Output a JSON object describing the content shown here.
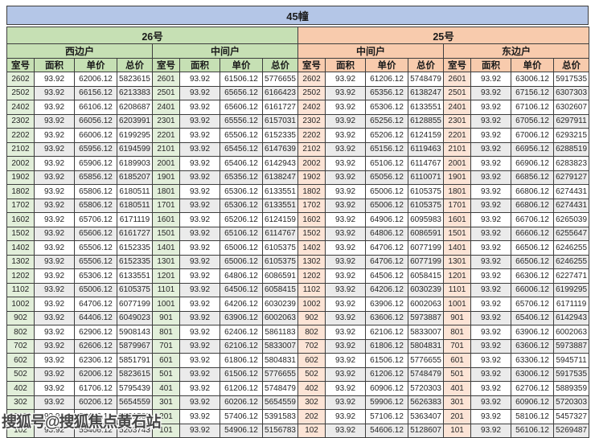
{
  "title": "45幢",
  "watermark": {
    "text": "搜狐号@搜狐焦点黄石站"
  },
  "colors": {
    "title_bar": "#b4c6e7",
    "section_green": "#c6e0b4",
    "section_peach": "#f8cbad",
    "room_col_green": "#e2efda",
    "room_col_peach": "#fce4d6",
    "stripe_gray": "#ebebeb"
  },
  "table": {
    "sections": [
      {
        "label": "26号",
        "units": [
          "西边户",
          "中间户"
        ]
      },
      {
        "label": "25号",
        "units": [
          "中间户",
          "东边户"
        ]
      }
    ],
    "column_headers": [
      "室号",
      "面积",
      "单价",
      "总价"
    ],
    "rows": [
      [
        "2602",
        "93.92",
        "62006.12",
        "5823615",
        "2601",
        "93.92",
        "61506.12",
        "5776655",
        "2602",
        "93.92",
        "61206.12",
        "5748479",
        "2601",
        "93.92",
        "63006.12",
        "5917535"
      ],
      [
        "2502",
        "93.92",
        "66156.12",
        "6213383",
        "2501",
        "93.92",
        "65656.12",
        "6166423",
        "2502",
        "93.92",
        "65356.12",
        "6138247",
        "2501",
        "93.92",
        "67156.12",
        "6307303"
      ],
      [
        "2402",
        "93.92",
        "66106.12",
        "6208687",
        "2401",
        "93.92",
        "65606.12",
        "6161727",
        "2402",
        "93.92",
        "65306.12",
        "6133551",
        "2401",
        "93.92",
        "67106.12",
        "6302607"
      ],
      [
        "2302",
        "93.92",
        "66056.12",
        "6203991",
        "2301",
        "93.92",
        "65556.12",
        "6157031",
        "2302",
        "93.92",
        "65256.12",
        "6128855",
        "2301",
        "93.92",
        "67056.12",
        "6297911"
      ],
      [
        "2202",
        "93.92",
        "66006.12",
        "6199295",
        "2201",
        "93.92",
        "65506.12",
        "6152335",
        "2202",
        "93.92",
        "65206.12",
        "6124159",
        "2201",
        "93.92",
        "67006.12",
        "6293215"
      ],
      [
        "2102",
        "93.92",
        "65956.12",
        "6194599",
        "2101",
        "93.92",
        "65456.12",
        "6147639",
        "2102",
        "93.92",
        "65156.12",
        "6119463",
        "2101",
        "93.92",
        "66956.12",
        "6288519"
      ],
      [
        "2002",
        "93.92",
        "65906.12",
        "6189903",
        "2001",
        "93.92",
        "65406.12",
        "6142943",
        "2002",
        "93.92",
        "65106.12",
        "6114767",
        "2001",
        "93.92",
        "66906.12",
        "6283823"
      ],
      [
        "1902",
        "93.92",
        "65856.12",
        "6185207",
        "1901",
        "93.92",
        "65356.12",
        "6138247",
        "1902",
        "93.92",
        "65056.12",
        "6110071",
        "1901",
        "93.92",
        "66856.12",
        "6279127"
      ],
      [
        "1802",
        "93.92",
        "65806.12",
        "6180511",
        "1801",
        "93.92",
        "65306.12",
        "6133551",
        "1802",
        "93.92",
        "65006.12",
        "6105375",
        "1801",
        "93.92",
        "66806.12",
        "6274431"
      ],
      [
        "1702",
        "93.92",
        "65806.12",
        "6180511",
        "1701",
        "93.92",
        "65306.12",
        "6133551",
        "1702",
        "93.92",
        "65006.12",
        "6105375",
        "1701",
        "93.92",
        "66806.12",
        "6274431"
      ],
      [
        "1602",
        "93.92",
        "65706.12",
        "6171119",
        "1601",
        "93.92",
        "65206.12",
        "6124159",
        "1602",
        "93.92",
        "64906.12",
        "6095983",
        "1601",
        "93.92",
        "66706.12",
        "6265039"
      ],
      [
        "1502",
        "93.92",
        "65606.12",
        "6161727",
        "1501",
        "93.92",
        "65106.12",
        "6114767",
        "1502",
        "93.92",
        "64806.12",
        "6086591",
        "1501",
        "93.92",
        "66606.12",
        "6255647"
      ],
      [
        "1402",
        "93.92",
        "65506.12",
        "6152335",
        "1401",
        "93.92",
        "65006.12",
        "6105375",
        "1402",
        "93.92",
        "64706.12",
        "6077199",
        "1401",
        "93.92",
        "66506.12",
        "6246255"
      ],
      [
        "1302",
        "93.92",
        "65506.12",
        "6152335",
        "1301",
        "93.92",
        "65006.12",
        "6105375",
        "1302",
        "93.92",
        "64706.12",
        "6077199",
        "1301",
        "93.92",
        "66506.12",
        "6246255"
      ],
      [
        "1202",
        "93.92",
        "65306.12",
        "6133551",
        "1201",
        "93.92",
        "64806.12",
        "6086591",
        "1202",
        "93.92",
        "64506.12",
        "6058415",
        "1201",
        "93.92",
        "66306.12",
        "6227471"
      ],
      [
        "1102",
        "93.92",
        "65006.12",
        "6105375",
        "1101",
        "93.92",
        "64506.12",
        "6058415",
        "1102",
        "93.92",
        "64206.12",
        "6030239",
        "1101",
        "93.92",
        "66006.12",
        "6199295"
      ],
      [
        "1002",
        "93.92",
        "64706.12",
        "6077199",
        "1001",
        "93.92",
        "64206.12",
        "6030239",
        "1002",
        "93.92",
        "63906.12",
        "6002063",
        "1001",
        "93.92",
        "65706.12",
        "6171119"
      ],
      [
        "902",
        "93.92",
        "64406.12",
        "6049023",
        "901",
        "93.92",
        "63906.12",
        "6002063",
        "902",
        "93.92",
        "63606.12",
        "5973887",
        "901",
        "93.92",
        "65406.12",
        "6142943"
      ],
      [
        "802",
        "93.92",
        "62906.12",
        "5908143",
        "801",
        "93.92",
        "62406.12",
        "5861183",
        "802",
        "93.92",
        "62106.12",
        "5833007",
        "801",
        "93.92",
        "63906.12",
        "6002063"
      ],
      [
        "702",
        "93.92",
        "62606.12",
        "5879967",
        "701",
        "93.92",
        "62106.12",
        "5833007",
        "702",
        "93.92",
        "61806.12",
        "5804831",
        "701",
        "93.92",
        "63606.12",
        "5973887"
      ],
      [
        "602",
        "93.92",
        "62306.12",
        "5851791",
        "601",
        "93.92",
        "61806.12",
        "5804831",
        "602",
        "93.92",
        "61506.12",
        "5776655",
        "601",
        "93.92",
        "63306.12",
        "5945711"
      ],
      [
        "502",
        "93.92",
        "62006.12",
        "5823615",
        "501",
        "93.92",
        "61506.12",
        "5776655",
        "502",
        "93.92",
        "61206.12",
        "5748479",
        "501",
        "93.92",
        "63006.12",
        "5917535"
      ],
      [
        "402",
        "93.92",
        "61706.12",
        "5795439",
        "401",
        "93.92",
        "61206.12",
        "5748479",
        "402",
        "93.92",
        "60906.12",
        "5720303",
        "401",
        "93.92",
        "62706.12",
        "5889359"
      ],
      [
        "302",
        "93.92",
        "60206.12",
        "5654559",
        "301",
        "93.92",
        "60206.12",
        "5654559",
        "302",
        "93.92",
        "59906.12",
        "5626383",
        "301",
        "93.92",
        "60906.12",
        "5720303"
      ],
      [
        "202",
        "93.92",
        "57406.12",
        "5391583",
        "201",
        "93.92",
        "57406.12",
        "5391583",
        "202",
        "93.92",
        "57106.12",
        "5363407",
        "201",
        "93.92",
        "58106.12",
        "5457327"
      ],
      [
        "102",
        "93.92",
        "55406.12",
        "5203743",
        "101",
        "93.92",
        "54906.12",
        "5156783",
        "102",
        "93.92",
        "54606.12",
        "5128607",
        "101",
        "93.92",
        "56106.12",
        "5269487"
      ]
    ]
  }
}
